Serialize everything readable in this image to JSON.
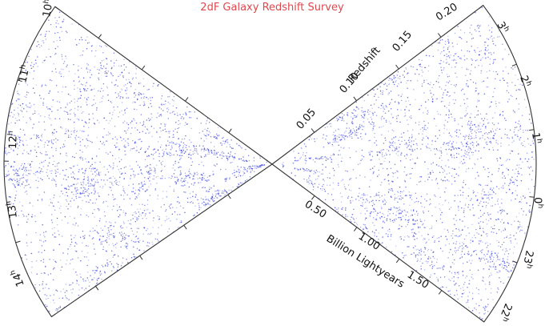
{
  "title": "2dF Galaxy Redshift Survey",
  "colors": {
    "title": "#e0484d",
    "galaxies": "#2b35d8",
    "frame": "#333333"
  },
  "axes": {
    "redshift_label": "Redshift",
    "redshift_ticks": [
      "0.05",
      "0.10",
      "0.15",
      "0.20"
    ],
    "distance_label": "Billion Lightyears",
    "distance_ticks": [
      "0.50",
      "1.00",
      "1.50"
    ]
  },
  "left_wedge": {
    "ra_labels": [
      {
        "h": "10",
        "s": "h"
      },
      {
        "h": "11",
        "s": "h"
      },
      {
        "h": "12",
        "s": "h"
      },
      {
        "h": "13",
        "s": "h"
      },
      {
        "h": "14",
        "s": "h"
      }
    ]
  },
  "right_wedge": {
    "ra_labels": [
      {
        "h": "3",
        "s": "h"
      },
      {
        "h": "2",
        "s": "h"
      },
      {
        "h": "1",
        "s": "h"
      },
      {
        "h": "0",
        "s": "h"
      },
      {
        "h": "23",
        "s": "h"
      },
      {
        "h": "22",
        "s": "h"
      }
    ]
  }
}
